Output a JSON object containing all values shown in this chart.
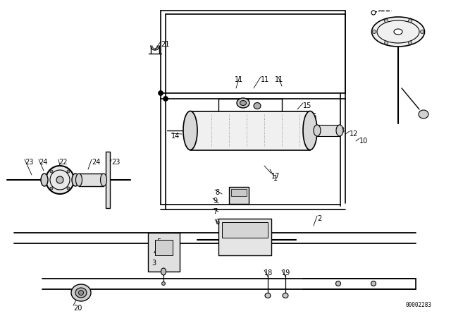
{
  "bg_color": "#ffffff",
  "fig_width": 6.4,
  "fig_height": 4.48,
  "dpi": 100,
  "diagram_id": "00002283",
  "line_color": "#000000",
  "text_color": "#000000",
  "font_size": 7.0
}
